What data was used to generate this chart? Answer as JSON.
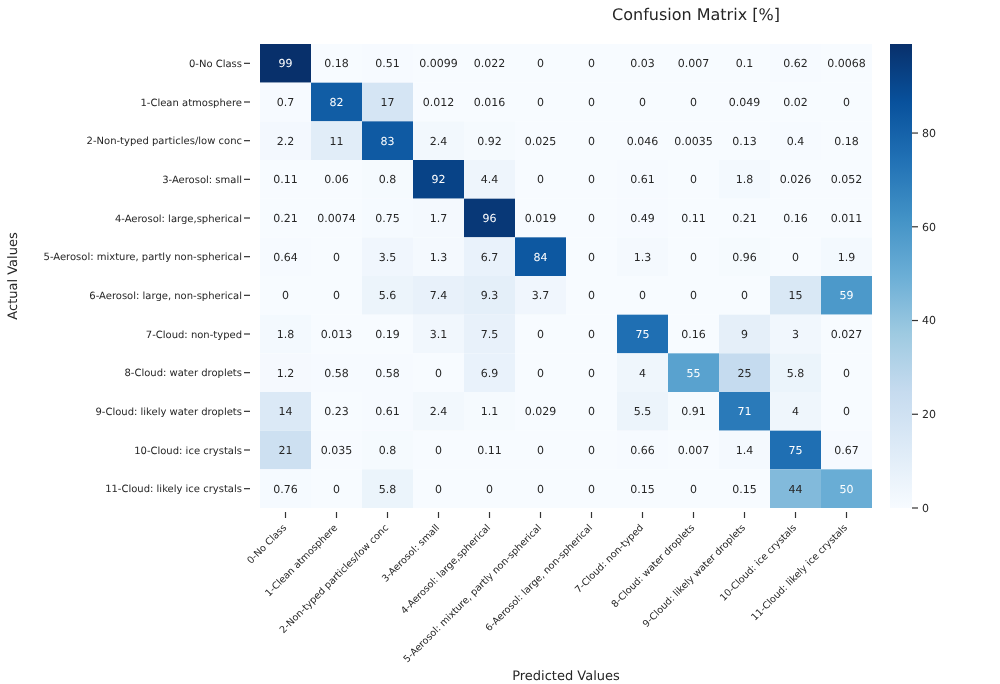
{
  "chart_data": {
    "type": "heatmap",
    "title": "Confusion Matrix [%]",
    "xlabel": "Predicted Values",
    "ylabel": "Actual Values",
    "categories": [
      "0-No Class",
      "1-Clean atmosphere",
      "2-Non-typed particles/low conc",
      "3-Aerosol: small",
      "4-Aerosol: large,spherical",
      "5-Aerosol: mixture, partly non-spherical",
      "6-Aerosol: large, non-spherical",
      "7-Cloud: non-typed",
      "8-Cloud: water droplets",
      "9-Cloud: likely water droplets",
      "10-Cloud: ice crystals",
      "11-Cloud: likely ice crystals"
    ],
    "y_categories": [
      "0-No Class",
      "1-Clean atmosphere",
      "2-Non-typed particles/low conc",
      "3-Aerosol: small",
      "4-Aerosol: large,spherical",
      "5-Aerosol: mixture, partly non-spherical",
      "6-Aerosol: large, non-spherical",
      "7-Cloud: non-typed",
      "8-Cloud: water droplets",
      "9-Cloud: likely water droplets",
      "10-Cloud: ice crystals",
      "11-Cloud: likely ice crystals"
    ],
    "cells": [
      [
        99,
        0.18,
        0.51,
        0.0099,
        0.022,
        0,
        0,
        0.03,
        0.007,
        0.1,
        0.62,
        0.0068
      ],
      [
        0.7,
        82,
        17,
        0.012,
        0.016,
        0,
        0,
        0,
        0,
        0.049,
        0.02,
        0
      ],
      [
        2.2,
        11,
        83,
        2.4,
        0.92,
        0.025,
        0,
        0.046,
        0.0035,
        0.13,
        0.4,
        0.18
      ],
      [
        0.11,
        0.06,
        0.8,
        92,
        4.4,
        0,
        0,
        0.61,
        0,
        1.8,
        0.026,
        0.052
      ],
      [
        0.21,
        0.0074,
        0.75,
        1.7,
        96,
        0.019,
        0,
        0.49,
        0.11,
        0.21,
        0.16,
        0.011
      ],
      [
        0.64,
        0,
        3.5,
        1.3,
        6.7,
        84,
        0,
        1.3,
        0,
        0.96,
        0,
        1.9
      ],
      [
        0,
        0,
        5.6,
        7.4,
        9.3,
        3.7,
        0,
        0,
        0,
        0,
        15,
        59
      ],
      [
        1.8,
        0.013,
        0.19,
        3.1,
        7.5,
        0,
        0,
        75,
        0.16,
        9,
        3,
        0.027
      ],
      [
        1.2,
        0.58,
        0.58,
        0,
        6.9,
        0,
        0,
        4,
        55,
        25,
        5.8,
        0
      ],
      [
        14,
        0.23,
        0.61,
        2.4,
        1.1,
        0.029,
        0,
        5.5,
        0.91,
        71,
        4,
        0
      ],
      [
        21,
        0.035,
        0.8,
        0,
        0.11,
        0,
        0,
        0.66,
        0.007,
        1.4,
        75,
        0.67
      ],
      [
        0.76,
        0,
        5.8,
        0,
        0,
        0,
        0,
        0.15,
        0,
        0.15,
        44,
        50
      ]
    ],
    "data_labels": true,
    "clim": [
      0,
      99
    ],
    "cticks": [
      0,
      20,
      40,
      60,
      80
    ]
  }
}
